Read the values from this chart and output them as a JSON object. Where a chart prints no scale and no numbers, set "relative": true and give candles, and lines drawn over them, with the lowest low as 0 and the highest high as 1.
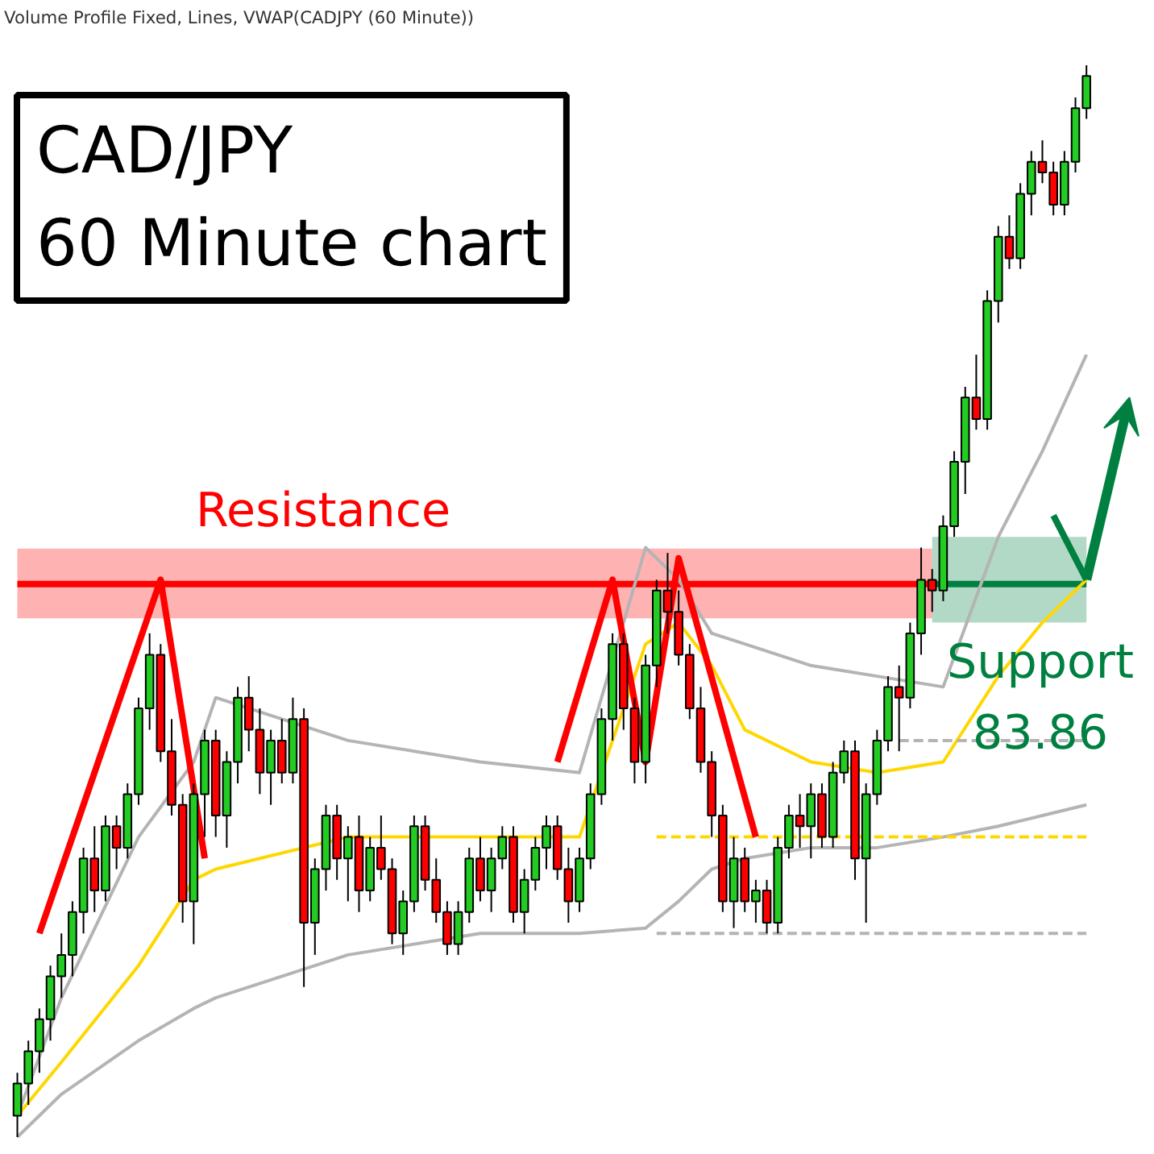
{
  "chart_data": {
    "type": "candlestick",
    "title": "CAD/JPY\n60 Minute chart",
    "subtitle": "Volume Profile Fixed, Lines, VWAP(CADJPY (60 Minute))",
    "relative": true,
    "tick_labels": false,
    "categories": [
      null,
      null,
      null,
      null,
      null,
      null,
      null,
      null,
      null,
      null,
      null,
      null,
      null,
      null,
      null,
      null,
      null,
      null,
      null,
      null,
      null,
      null,
      null,
      null,
      null,
      null,
      null,
      null,
      null,
      null,
      null,
      null,
      null,
      null,
      null,
      null,
      null,
      null,
      null,
      null,
      null,
      null,
      null,
      null,
      null,
      null,
      null,
      null,
      null,
      null,
      null,
      null,
      null,
      null,
      null,
      null,
      null,
      null,
      null,
      null,
      null,
      null,
      null,
      null,
      null,
      null,
      null,
      null,
      null,
      null,
      null,
      null,
      null,
      null,
      null,
      null,
      null,
      null,
      null,
      null,
      null,
      null,
      null,
      null,
      null,
      null,
      null,
      null,
      null,
      null,
      null,
      null,
      null,
      null,
      null,
      null,
      null,
      null
    ],
    "ohlc": [
      [
        0.02,
        0.06,
        0.0,
        0.05
      ],
      [
        0.05,
        0.09,
        0.03,
        0.08
      ],
      [
        0.08,
        0.12,
        0.06,
        0.11
      ],
      [
        0.11,
        0.16,
        0.09,
        0.15
      ],
      [
        0.15,
        0.19,
        0.13,
        0.17
      ],
      [
        0.17,
        0.22,
        0.15,
        0.21
      ],
      [
        0.21,
        0.27,
        0.19,
        0.26
      ],
      [
        0.26,
        0.29,
        0.21,
        0.23
      ],
      [
        0.23,
        0.3,
        0.22,
        0.29
      ],
      [
        0.29,
        0.3,
        0.25,
        0.27
      ],
      [
        0.27,
        0.33,
        0.26,
        0.32
      ],
      [
        0.32,
        0.41,
        0.31,
        0.4
      ],
      [
        0.4,
        0.47,
        0.38,
        0.45
      ],
      [
        0.45,
        0.46,
        0.35,
        0.36
      ],
      [
        0.36,
        0.39,
        0.3,
        0.31
      ],
      [
        0.31,
        0.32,
        0.2,
        0.22
      ],
      [
        0.22,
        0.33,
        0.18,
        0.32
      ],
      [
        0.32,
        0.38,
        0.28,
        0.37
      ],
      [
        0.37,
        0.38,
        0.28,
        0.3
      ],
      [
        0.3,
        0.36,
        0.27,
        0.35
      ],
      [
        0.35,
        0.42,
        0.33,
        0.41
      ],
      [
        0.41,
        0.43,
        0.36,
        0.38
      ],
      [
        0.38,
        0.4,
        0.32,
        0.34
      ],
      [
        0.34,
        0.38,
        0.31,
        0.37
      ],
      [
        0.37,
        0.39,
        0.33,
        0.34
      ],
      [
        0.34,
        0.41,
        0.33,
        0.39
      ],
      [
        0.39,
        0.4,
        0.14,
        0.2
      ],
      [
        0.2,
        0.26,
        0.17,
        0.25
      ],
      [
        0.25,
        0.31,
        0.23,
        0.3
      ],
      [
        0.3,
        0.31,
        0.24,
        0.26
      ],
      [
        0.26,
        0.29,
        0.22,
        0.28
      ],
      [
        0.28,
        0.3,
        0.21,
        0.23
      ],
      [
        0.23,
        0.28,
        0.22,
        0.27
      ],
      [
        0.27,
        0.3,
        0.24,
        0.25
      ],
      [
        0.25,
        0.26,
        0.18,
        0.19
      ],
      [
        0.19,
        0.23,
        0.17,
        0.22
      ],
      [
        0.22,
        0.3,
        0.21,
        0.29
      ],
      [
        0.29,
        0.3,
        0.23,
        0.24
      ],
      [
        0.24,
        0.26,
        0.2,
        0.21
      ],
      [
        0.21,
        0.22,
        0.17,
        0.18
      ],
      [
        0.18,
        0.22,
        0.17,
        0.21
      ],
      [
        0.21,
        0.27,
        0.2,
        0.26
      ],
      [
        0.26,
        0.28,
        0.22,
        0.23
      ],
      [
        0.23,
        0.27,
        0.21,
        0.26
      ],
      [
        0.26,
        0.29,
        0.25,
        0.28
      ],
      [
        0.28,
        0.29,
        0.2,
        0.21
      ],
      [
        0.21,
        0.25,
        0.19,
        0.24
      ],
      [
        0.24,
        0.28,
        0.23,
        0.27
      ],
      [
        0.27,
        0.3,
        0.25,
        0.29
      ],
      [
        0.29,
        0.3,
        0.24,
        0.25
      ],
      [
        0.25,
        0.27,
        0.2,
        0.22
      ],
      [
        0.22,
        0.27,
        0.21,
        0.26
      ],
      [
        0.26,
        0.33,
        0.25,
        0.32
      ],
      [
        0.32,
        0.4,
        0.31,
        0.39
      ],
      [
        0.39,
        0.47,
        0.37,
        0.46
      ],
      [
        0.46,
        0.47,
        0.38,
        0.4
      ],
      [
        0.4,
        0.41,
        0.33,
        0.35
      ],
      [
        0.35,
        0.45,
        0.33,
        0.44
      ],
      [
        0.44,
        0.52,
        0.42,
        0.51
      ],
      [
        0.51,
        0.545,
        0.47,
        0.49
      ],
      [
        0.49,
        0.51,
        0.44,
        0.45
      ],
      [
        0.45,
        0.46,
        0.39,
        0.4
      ],
      [
        0.4,
        0.42,
        0.34,
        0.35
      ],
      [
        0.35,
        0.36,
        0.28,
        0.3
      ],
      [
        0.3,
        0.31,
        0.21,
        0.22
      ],
      [
        0.22,
        0.28,
        0.195,
        0.26
      ],
      [
        0.26,
        0.27,
        0.21,
        0.22
      ],
      [
        0.22,
        0.24,
        0.2,
        0.23
      ],
      [
        0.23,
        0.24,
        0.19,
        0.2
      ],
      [
        0.2,
        0.28,
        0.19,
        0.27
      ],
      [
        0.27,
        0.31,
        0.26,
        0.3
      ],
      [
        0.3,
        0.32,
        0.27,
        0.29
      ],
      [
        0.29,
        0.33,
        0.26,
        0.32
      ],
      [
        0.32,
        0.33,
        0.27,
        0.28
      ],
      [
        0.28,
        0.35,
        0.27,
        0.34
      ],
      [
        0.34,
        0.37,
        0.33,
        0.36
      ],
      [
        0.36,
        0.37,
        0.24,
        0.26
      ],
      [
        0.26,
        0.33,
        0.2,
        0.32
      ],
      [
        0.32,
        0.38,
        0.31,
        0.37
      ],
      [
        0.37,
        0.43,
        0.36,
        0.42
      ],
      [
        0.42,
        0.44,
        0.36,
        0.41
      ],
      [
        0.41,
        0.48,
        0.4,
        0.47
      ],
      [
        0.47,
        0.55,
        0.45,
        0.52
      ],
      [
        0.52,
        0.53,
        0.49,
        0.51
      ],
      [
        0.51,
        0.58,
        0.5,
        0.57
      ],
      [
        0.57,
        0.64,
        0.56,
        0.63
      ],
      [
        0.63,
        0.7,
        0.6,
        0.69
      ],
      [
        0.69,
        0.73,
        0.66,
        0.67
      ],
      [
        0.67,
        0.79,
        0.66,
        0.78
      ],
      [
        0.78,
        0.85,
        0.76,
        0.84
      ],
      [
        0.84,
        0.86,
        0.81,
        0.82
      ],
      [
        0.82,
        0.89,
        0.81,
        0.88
      ],
      [
        0.88,
        0.92,
        0.86,
        0.91
      ],
      [
        0.91,
        0.93,
        0.89,
        0.9
      ],
      [
        0.9,
        0.91,
        0.86,
        0.87
      ],
      [
        0.87,
        0.92,
        0.86,
        0.91
      ],
      [
        0.91,
        0.97,
        0.9,
        0.96
      ],
      [
        0.96,
        1.0,
        0.95,
        0.99
      ]
    ],
    "series": [
      {
        "type": "line",
        "color": "#ff0000",
        "values": [
          0.516,
          null,
          null,
          null,
          null,
          null,
          null,
          null,
          null,
          null,
          null,
          null,
          null,
          null,
          null,
          null,
          null,
          null,
          null,
          null,
          null,
          null,
          null,
          null,
          null,
          null,
          null,
          null,
          null,
          null,
          null,
          null,
          null,
          null,
          null,
          null,
          null,
          null,
          null,
          null,
          null,
          null,
          null,
          null,
          null,
          null,
          null,
          null,
          null,
          null,
          null,
          null,
          null,
          null,
          null,
          null,
          null,
          null,
          null,
          null,
          null,
          null,
          null,
          null,
          null,
          null,
          null,
          null,
          null,
          null,
          null,
          null,
          null,
          null,
          null,
          null,
          null,
          null,
          null,
          null,
          null,
          null,
          null,
          0.516,
          null,
          null,
          null,
          null,
          null,
          null,
          null,
          null,
          null,
          null,
          null,
          null,
          null,
          null
        ],
        "lower": [
          0.484,
          null,
          null,
          null,
          null,
          null,
          null,
          null,
          null,
          null,
          null,
          null,
          null,
          null,
          null,
          null,
          null,
          null,
          null,
          null,
          null,
          null,
          null,
          null,
          null,
          null,
          null,
          null,
          null,
          null,
          null,
          null,
          null,
          null,
          null,
          null,
          null,
          null,
          null,
          null,
          null,
          null,
          null,
          null,
          null,
          null,
          null,
          null,
          null,
          null,
          null,
          null,
          null,
          null,
          null,
          null,
          null,
          null,
          null,
          null,
          null,
          null,
          null,
          null,
          null,
          null,
          null,
          null,
          null,
          null,
          null,
          null,
          null,
          null,
          null,
          null,
          null,
          null,
          null,
          null,
          null,
          null,
          null,
          0.484,
          null,
          null,
          null,
          null,
          null,
          null,
          null,
          null,
          null,
          null,
          null,
          null,
          null,
          null
        ],
        "upper": [
          0.549,
          null,
          null,
          null,
          null,
          null,
          null,
          null,
          null,
          null,
          null,
          null,
          null,
          null,
          null,
          null,
          null,
          null,
          null,
          null,
          null,
          null,
          null,
          null,
          null,
          null,
          null,
          null,
          null,
          null,
          null,
          null,
          null,
          null,
          null,
          null,
          null,
          null,
          null,
          null,
          null,
          null,
          null,
          null,
          null,
          null,
          null,
          null,
          null,
          null,
          null,
          null,
          null,
          null,
          null,
          null,
          null,
          null,
          null,
          null,
          null,
          null,
          null,
          null,
          null,
          null,
          null,
          null,
          null,
          null,
          null,
          null,
          null,
          null,
          null,
          null,
          null,
          null,
          null,
          null,
          null,
          null,
          null,
          0.549,
          null,
          null,
          null,
          null,
          null,
          null,
          null,
          null,
          null,
          null,
          null,
          null,
          null,
          null
        ]
      },
      {
        "type": "line",
        "color": "#008040",
        "values": [
          null,
          null,
          null,
          null,
          null,
          null,
          null,
          null,
          null,
          null,
          null,
          null,
          null,
          null,
          null,
          null,
          null,
          null,
          null,
          null,
          null,
          null,
          null,
          null,
          null,
          null,
          null,
          null,
          null,
          null,
          null,
          null,
          null,
          null,
          null,
          null,
          null,
          null,
          null,
          null,
          null,
          null,
          null,
          null,
          null,
          null,
          null,
          null,
          null,
          null,
          null,
          null,
          null,
          null,
          null,
          null,
          null,
          null,
          null,
          null,
          null,
          null,
          null,
          null,
          null,
          null,
          null,
          null,
          null,
          null,
          null,
          null,
          null,
          null,
          null,
          null,
          null,
          null,
          null,
          null,
          null,
          null,
          null,
          0.516,
          null,
          null,
          null,
          null,
          null,
          null,
          null,
          null,
          null,
          null,
          null,
          null,
          null,
          0.516
        ],
        "lower": [
          null,
          null,
          null,
          null,
          null,
          null,
          null,
          null,
          null,
          null,
          null,
          null,
          null,
          null,
          null,
          null,
          null,
          null,
          null,
          null,
          null,
          null,
          null,
          null,
          null,
          null,
          null,
          null,
          null,
          null,
          null,
          null,
          null,
          null,
          null,
          null,
          null,
          null,
          null,
          null,
          null,
          null,
          null,
          null,
          null,
          null,
          null,
          null,
          null,
          null,
          null,
          null,
          null,
          null,
          null,
          null,
          null,
          null,
          null,
          null,
          null,
          null,
          null,
          null,
          null,
          null,
          null,
          null,
          null,
          null,
          null,
          null,
          null,
          null,
          null,
          null,
          null,
          null,
          null,
          null,
          null,
          null,
          null,
          0.48,
          null,
          null,
          null,
          null,
          null,
          null,
          null,
          null,
          null,
          null,
          null,
          null,
          null,
          0.48
        ],
        "upper": [
          null,
          null,
          null,
          null,
          null,
          null,
          null,
          null,
          null,
          null,
          null,
          null,
          null,
          null,
          null,
          null,
          null,
          null,
          null,
          null,
          null,
          null,
          null,
          null,
          null,
          null,
          null,
          null,
          null,
          null,
          null,
          null,
          null,
          null,
          null,
          null,
          null,
          null,
          null,
          null,
          null,
          null,
          null,
          null,
          null,
          null,
          null,
          null,
          null,
          null,
          null,
          null,
          null,
          null,
          null,
          null,
          null,
          null,
          null,
          null,
          null,
          null,
          null,
          null,
          null,
          null,
          null,
          null,
          null,
          null,
          null,
          null,
          null,
          null,
          null,
          null,
          null,
          null,
          null,
          null,
          null,
          null,
          null,
          0.56,
          null,
          null,
          null,
          null,
          null,
          null,
          null,
          null,
          null,
          null,
          null,
          null,
          null,
          0.56
        ]
      },
      {
        "type": "line",
        "color": "#b4b4b4",
        "values": [
          0.02,
          null,
          null,
          null,
          0.13,
          null,
          null,
          null,
          null,
          null,
          null,
          0.28,
          null,
          null,
          null,
          null,
          0.35,
          null,
          0.41,
          null,
          null,
          null,
          null,
          null,
          null,
          null,
          null,
          null,
          null,
          null,
          0.37,
          null,
          null,
          null,
          null,
          null,
          null,
          null,
          null,
          null,
          null,
          null,
          0.35,
          null,
          null,
          null,
          null,
          null,
          null,
          null,
          null,
          0.34,
          null,
          null,
          null,
          null,
          null,
          0.55,
          null,
          null,
          0.52,
          null,
          null,
          0.47,
          null,
          null,
          0.46,
          null,
          null,
          null,
          null,
          null,
          0.44,
          null,
          null,
          null,
          null,
          null,
          0.43,
          null,
          null,
          null,
          null,
          null,
          0.42,
          null,
          null,
          null,
          null,
          0.56,
          null,
          null,
          null,
          0.64,
          null,
          null,
          null,
          0.73
        ]
      },
      {
        "type": "line",
        "color": "#b4b4b4",
        "values": [
          0.0,
          null,
          null,
          null,
          0.04,
          null,
          null,
          null,
          null,
          null,
          null,
          0.09,
          null,
          null,
          null,
          null,
          0.12,
          null,
          0.13,
          null,
          null,
          null,
          null,
          null,
          null,
          null,
          null,
          null,
          null,
          null,
          0.17,
          null,
          null,
          null,
          null,
          null,
          null,
          null,
          null,
          null,
          null,
          null,
          0.19,
          null,
          null,
          null,
          null,
          null,
          null,
          null,
          null,
          0.19,
          null,
          null,
          null,
          null,
          null,
          0.195,
          null,
          null,
          0.22,
          null,
          null,
          0.25,
          null,
          null,
          0.26,
          null,
          null,
          null,
          null,
          null,
          0.27,
          null,
          null,
          null,
          null,
          null,
          0.27,
          null,
          null,
          null,
          null,
          null,
          0.28,
          null,
          null,
          null,
          null,
          0.29,
          null,
          null,
          null,
          0.3,
          null,
          null,
          null,
          0.31
        ]
      },
      {
        "type": "line",
        "color": "#ffd700",
        "values": [
          0.02,
          null,
          null,
          null,
          0.07,
          null,
          null,
          null,
          null,
          null,
          null,
          0.16,
          null,
          null,
          null,
          null,
          0.24,
          null,
          0.25,
          null,
          null,
          null,
          null,
          null,
          null,
          null,
          null,
          null,
          null,
          null,
          0.28,
          null,
          null,
          null,
          null,
          null,
          null,
          null,
          null,
          null,
          null,
          null,
          0.28,
          null,
          null,
          null,
          null,
          null,
          null,
          null,
          null,
          0.28,
          null,
          null,
          null,
          null,
          null,
          0.46,
          null,
          null,
          0.48,
          null,
          null,
          0.44,
          null,
          null,
          0.38,
          null,
          null,
          null,
          null,
          null,
          0.35,
          null,
          null,
          null,
          null,
          null,
          0.34,
          null,
          null,
          null,
          null,
          null,
          0.35,
          null,
          null,
          null,
          null,
          0.43,
          null,
          null,
          null,
          0.48,
          null,
          null,
          null,
          0.52
        ]
      },
      {
        "type": "line",
        "color": "#ffd700",
        "line_style": "dashed",
        "values": [
          null,
          null,
          null,
          null,
          null,
          null,
          null,
          null,
          null,
          null,
          null,
          null,
          null,
          null,
          null,
          null,
          null,
          null,
          null,
          null,
          null,
          null,
          null,
          null,
          null,
          null,
          null,
          null,
          null,
          null,
          null,
          null,
          null,
          null,
          null,
          null,
          null,
          null,
          null,
          null,
          null,
          null,
          null,
          null,
          null,
          null,
          null,
          null,
          null,
          null,
          null,
          null,
          null,
          null,
          null,
          null,
          null,
          null,
          0.28,
          null,
          null,
          null,
          null,
          null,
          null,
          null,
          null,
          null,
          null,
          null,
          null,
          null,
          null,
          null,
          null,
          null,
          null,
          null,
          null,
          null,
          null,
          null,
          null,
          null,
          null,
          null,
          null,
          null,
          null,
          null,
          null,
          null,
          null,
          null,
          null,
          null,
          null,
          0.28
        ]
      },
      {
        "type": "line",
        "color": "#b4b4b4",
        "line_style": "dashed",
        "values": [
          null,
          null,
          null,
          null,
          null,
          null,
          null,
          null,
          null,
          null,
          null,
          null,
          null,
          null,
          null,
          null,
          null,
          null,
          null,
          null,
          null,
          null,
          null,
          null,
          null,
          null,
          null,
          null,
          null,
          null,
          null,
          null,
          null,
          null,
          null,
          null,
          null,
          null,
          null,
          null,
          null,
          null,
          null,
          null,
          null,
          null,
          null,
          null,
          null,
          null,
          null,
          null,
          null,
          null,
          null,
          null,
          null,
          null,
          null,
          null,
          null,
          null,
          null,
          null,
          null,
          null,
          null,
          null,
          null,
          null,
          null,
          null,
          null,
          null,
          null,
          null,
          null,
          null,
          null,
          null,
          0.37,
          null,
          null,
          null,
          null,
          null,
          null,
          null,
          null,
          null,
          null,
          null,
          null,
          null,
          null,
          null,
          null,
          0.37
        ]
      },
      {
        "type": "line",
        "color": "#b4b4b4",
        "line_style": "dashed",
        "values": [
          null,
          null,
          null,
          null,
          null,
          null,
          null,
          null,
          null,
          null,
          null,
          null,
          null,
          null,
          null,
          null,
          null,
          null,
          null,
          null,
          null,
          null,
          null,
          null,
          null,
          null,
          null,
          null,
          null,
          null,
          null,
          null,
          null,
          null,
          null,
          null,
          null,
          null,
          null,
          null,
          null,
          null,
          null,
          null,
          null,
          null,
          null,
          null,
          null,
          null,
          null,
          null,
          null,
          null,
          null,
          null,
          null,
          null,
          0.19,
          null,
          null,
          null,
          null,
          null,
          null,
          null,
          null,
          null,
          null,
          null,
          null,
          null,
          null,
          null,
          null,
          null,
          null,
          null,
          null,
          null,
          null,
          null,
          null,
          null,
          null,
          null,
          null,
          null,
          null,
          null,
          null,
          null,
          null,
          null,
          null,
          null,
          null,
          0.19
        ]
      },
      {
        "type": "line",
        "color": "#ff0000",
        "values": [
          null,
          null,
          0.19,
          null,
          null,
          null,
          null,
          null,
          null,
          null,
          null,
          null,
          null,
          0.52,
          null,
          null,
          null,
          0.26,
          null,
          null,
          null,
          null,
          null,
          null,
          null,
          null,
          null,
          null,
          null,
          null,
          null,
          null,
          null,
          null,
          null,
          null,
          null,
          null,
          null,
          null,
          null,
          null,
          null,
          null,
          null,
          null,
          null,
          null,
          null,
          null,
          null,
          null,
          null,
          null,
          null,
          null,
          null,
          null,
          null,
          null,
          null,
          null,
          null,
          null,
          null,
          null,
          null,
          null,
          null,
          null,
          null,
          null,
          null,
          null,
          null,
          null,
          null,
          null,
          null,
          null,
          null,
          null,
          null,
          null,
          null,
          null,
          null,
          null,
          null,
          null,
          null,
          null,
          null,
          null,
          null,
          null,
          null,
          null
        ]
      },
      {
        "type": "line",
        "color": "#ff0000",
        "values": [
          null,
          null,
          null,
          null,
          null,
          null,
          null,
          null,
          null,
          null,
          null,
          null,
          null,
          null,
          null,
          null,
          null,
          null,
          null,
          null,
          null,
          null,
          null,
          null,
          null,
          null,
          null,
          null,
          null,
          null,
          null,
          null,
          null,
          null,
          null,
          null,
          null,
          null,
          null,
          null,
          null,
          null,
          null,
          null,
          null,
          null,
          null,
          null,
          null,
          0.35,
          null,
          null,
          null,
          null,
          0.52,
          null,
          null,
          0.35,
          null,
          null,
          0.54,
          null,
          null,
          null,
          null,
          null,
          null,
          0.28,
          null,
          null,
          null,
          null,
          null,
          null,
          null,
          null,
          null,
          null,
          null,
          null,
          null,
          null,
          null,
          null,
          null,
          null,
          null,
          null,
          null,
          null,
          null,
          null,
          null,
          null,
          null,
          null,
          null,
          null
        ]
      },
      {
        "type": "line",
        "color": "#008040",
        "values": [
          null,
          null,
          null,
          null,
          null,
          null,
          null,
          null,
          null,
          null,
          null,
          null,
          null,
          null,
          null,
          null,
          null,
          null,
          null,
          null,
          null,
          null,
          null,
          null,
          null,
          null,
          null,
          null,
          null,
          null,
          null,
          null,
          null,
          null,
          null,
          null,
          null,
          null,
          null,
          null,
          null,
          null,
          null,
          null,
          null,
          null,
          null,
          null,
          null,
          null,
          null,
          null,
          null,
          null,
          null,
          null,
          null,
          null,
          null,
          null,
          null,
          null,
          null,
          null,
          null,
          null,
          null,
          null,
          null,
          null,
          null,
          null,
          null,
          null,
          null,
          null,
          null,
          null,
          null,
          null,
          null,
          null,
          null,
          null,
          null,
          null,
          null,
          null,
          null,
          null,
          null,
          null,
          null,
          null,
          0.58,
          null,
          null,
          0.52
        ]
      }
    ],
    "annotations": [
      "Resistance",
      "Support\n83.86"
    ]
  }
}
